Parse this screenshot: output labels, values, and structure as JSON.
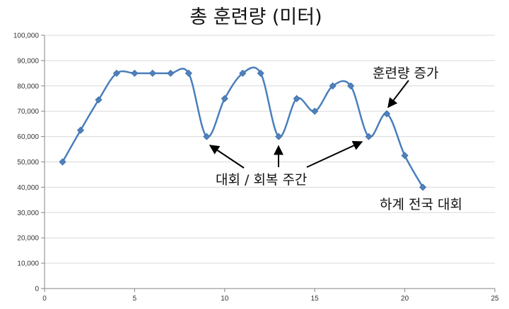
{
  "chart_data": {
    "type": "line",
    "title": "총 훈련량 (미터)",
    "xlabel": "",
    "ylabel": "",
    "xlim": [
      0,
      25
    ],
    "ylim": [
      0,
      100000
    ],
    "x_ticks": [
      0,
      5,
      10,
      15,
      20,
      25
    ],
    "y_ticks": [
      0,
      10000,
      20000,
      30000,
      40000,
      50000,
      60000,
      70000,
      80000,
      90000,
      100000
    ],
    "x_tick_labels": [
      "0",
      "5",
      "10",
      "15",
      "20",
      "25"
    ],
    "y_tick_labels": [
      "0",
      "10,000",
      "20,000",
      "30,000",
      "40,000",
      "50,000",
      "60,000",
      "70,000",
      "80,000",
      "90,000",
      "100,000"
    ],
    "grid": "horizontal",
    "legend": "none",
    "series": [
      {
        "color": "#4A7EBB",
        "marker_color": "#4F81BD",
        "x": [
          1,
          2,
          3,
          4,
          5,
          6,
          7,
          8,
          9,
          10,
          11,
          12,
          13,
          14,
          15,
          16,
          17,
          18,
          19,
          20,
          21
        ],
        "y": [
          50000,
          62500,
          74500,
          85000,
          85000,
          85000,
          85000,
          85000,
          60000,
          75000,
          85000,
          85000,
          60000,
          75000,
          70000,
          80000,
          80000,
          60000,
          69000,
          52500,
          40000
        ]
      }
    ],
    "annotations": [
      {
        "id": "increase",
        "text": "훈련량 증가"
      },
      {
        "id": "recovery",
        "text": "대회 / 회복 주간"
      },
      {
        "id": "champs",
        "text": "하계 전국 대회"
      }
    ]
  }
}
